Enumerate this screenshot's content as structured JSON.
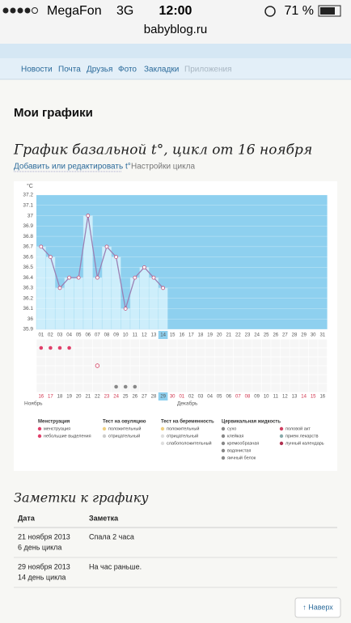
{
  "status": {
    "carrier": "MegaFon",
    "network": "3G",
    "time": "12:00",
    "battery": "71 %"
  },
  "url": "babyblog.ru",
  "nav": [
    "Новости",
    "Почта",
    "Друзья",
    "Фото",
    "Закладки",
    "Приложения"
  ],
  "heading": "Мои графики",
  "chart_title": "График базальной t°, цикл от 16 ноября",
  "links": [
    "Добавить или редактировать t°",
    "Настройки цикла"
  ],
  "chart_data": {
    "type": "bar",
    "y_label": "°C",
    "categories": [
      "01",
      "02",
      "03",
      "04",
      "05",
      "06",
      "07",
      "08",
      "09",
      "10",
      "11",
      "12",
      "13",
      "14",
      "15",
      "16",
      "17",
      "18",
      "19",
      "20",
      "21",
      "22",
      "23",
      "24",
      "25",
      "26",
      "27",
      "28",
      "29",
      "30",
      "31"
    ],
    "values": [
      36.7,
      36.6,
      36.3,
      36.4,
      36.4,
      37.0,
      36.4,
      36.7,
      36.6,
      36.1,
      36.4,
      36.5,
      36.4,
      36.3,
      null,
      null,
      null,
      null,
      null,
      null,
      null,
      null,
      null,
      null,
      null,
      null,
      null,
      null,
      null,
      null,
      null
    ],
    "ylim": [
      35.9,
      37.2
    ],
    "yticks": [
      35.9,
      36,
      36.1,
      36.2,
      36.3,
      36.4,
      36.5,
      36.6,
      36.7,
      36.8,
      36.9,
      37,
      37.1,
      37.2
    ],
    "background": "#8ed0ef",
    "bar_color": "#cdeefb",
    "line_color": "#9a80b4",
    "current_day": 14,
    "dates": [
      "16",
      "17",
      "18",
      "19",
      "20",
      "21",
      "22",
      "23",
      "24",
      "25",
      "26",
      "27",
      "28",
      "29",
      "30",
      "01",
      "02",
      "03",
      "04",
      "05",
      "06",
      "07",
      "08",
      "09",
      "10",
      "11",
      "12",
      "13",
      "14",
      "15",
      "16"
    ],
    "weekends": [
      0,
      1,
      7,
      8,
      14,
      15,
      21,
      22,
      28,
      29
    ],
    "months": [
      "Ноябрь",
      "Декабрь"
    ]
  },
  "legend": [
    {
      "title": "Менструация",
      "items": [
        {
          "label": "менструация",
          "days": [
            1,
            2,
            3,
            4
          ]
        },
        {
          "label": "небольшие выделения",
          "days": []
        }
      ]
    },
    {
      "title": "Тест на овуляцию",
      "items": [
        {
          "label": "положительный",
          "days": []
        },
        {
          "label": "отрицательный",
          "days": []
        }
      ]
    },
    {
      "title": "Тест на беременность",
      "items": [
        {
          "label": "положительный",
          "days": []
        },
        {
          "label": "отрицательный",
          "days": []
        },
        {
          "label": "слабоположительный",
          "days": []
        }
      ]
    },
    {
      "title": "Цервикальная жидкость",
      "items": [
        {
          "label": "сухо",
          "days": []
        },
        {
          "label": "клейкая",
          "days": [
            9
          ]
        },
        {
          "label": "кремообразная",
          "days": []
        },
        {
          "label": "водянистая",
          "days": []
        },
        {
          "label": "яичный белок",
          "days": [
            10,
            11
          ]
        }
      ]
    },
    {
      "title": "",
      "items": [
        {
          "label": "половой акт",
          "days": [
            7
          ]
        },
        {
          "label": "прием лекарств",
          "days": []
        },
        {
          "label": "лунный календарь",
          "days": []
        }
      ]
    }
  ],
  "notes": {
    "title": "Заметки к графику",
    "header": [
      "Дата",
      "Заметка"
    ],
    "rows": [
      [
        "21 ноября 2013",
        "6 день цикла",
        "Спала 2 часа"
      ],
      [
        "29 ноября 2013",
        "14 день цикла",
        "На час раньше."
      ]
    ]
  },
  "back_button": "↑ Наверх"
}
